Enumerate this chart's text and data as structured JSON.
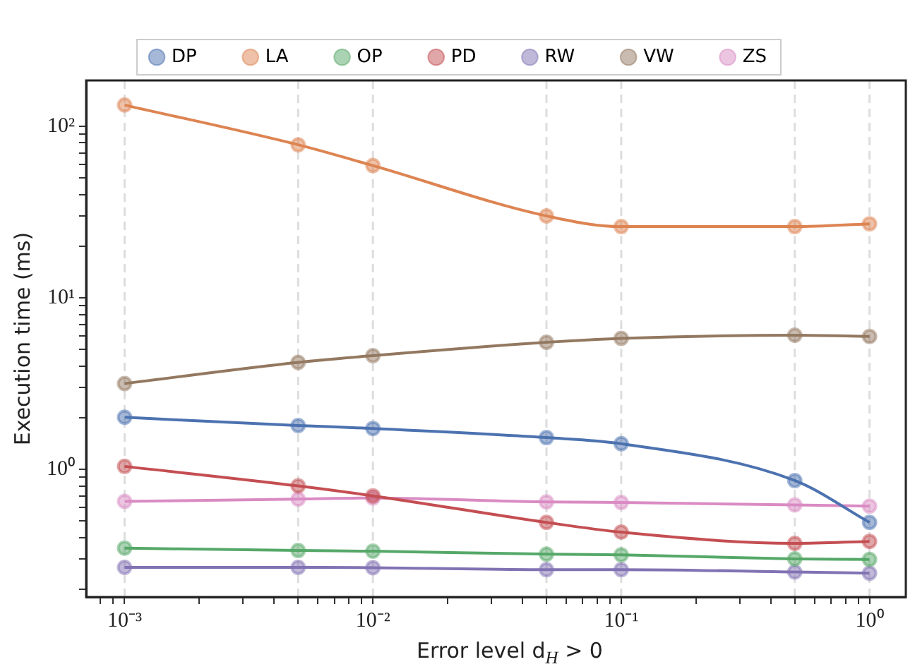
{
  "chart_data": {
    "type": "line",
    "xlabel": "Error level d$_{H}$ > 0",
    "ylabel": "Execution time (ms)",
    "x": [
      0.001,
      0.005,
      0.01,
      0.05,
      0.1,
      0.5,
      1
    ],
    "series": [
      {
        "name": "DP",
        "color": "#4c72b0",
        "values": [
          2.01,
          1.8,
          1.73,
          1.53,
          1.41,
          0.86,
          0.49
        ]
      },
      {
        "name": "LA",
        "color": "#dd8452",
        "values": [
          133,
          78,
          59,
          30,
          26,
          26,
          27
        ]
      },
      {
        "name": "OP",
        "color": "#55a868",
        "values": [
          0.347,
          0.336,
          0.333,
          0.32,
          0.317,
          0.3,
          0.298
        ]
      },
      {
        "name": "PD",
        "color": "#c44e52",
        "values": [
          1.04,
          0.8,
          0.7,
          0.49,
          0.43,
          0.37,
          0.38
        ]
      },
      {
        "name": "RW",
        "color": "#8172b3",
        "values": [
          0.268,
          0.268,
          0.267,
          0.26,
          0.26,
          0.252,
          0.248
        ]
      },
      {
        "name": "VW",
        "color": "#937860",
        "values": [
          3.16,
          4.2,
          4.6,
          5.5,
          5.8,
          6.05,
          5.95
        ]
      },
      {
        "name": "ZS",
        "color": "#da8bc3",
        "values": [
          0.65,
          0.67,
          0.68,
          0.645,
          0.64,
          0.62,
          0.61
        ]
      }
    ],
    "log": "xy",
    "xlim": [
      0.0007,
      1.4
    ],
    "ylim": [
      0.18,
      185
    ],
    "xticks": [
      {
        "value": 0.0008,
        "label": null
      },
      {
        "value": 0.0009,
        "label": null
      },
      {
        "value": 0.001,
        "label": "10⁻³"
      },
      {
        "value": 0.002,
        "label": null
      },
      {
        "value": 0.003,
        "label": null
      },
      {
        "value": 0.004,
        "label": null
      },
      {
        "value": 0.005,
        "label": null
      },
      {
        "value": 0.006,
        "label": null
      },
      {
        "value": 0.007,
        "label": null
      },
      {
        "value": 0.008,
        "label": null
      },
      {
        "value": 0.009,
        "label": null
      },
      {
        "value": 0.01,
        "label": "10⁻²"
      },
      {
        "value": 0.02,
        "label": null
      },
      {
        "value": 0.03,
        "label": null
      },
      {
        "value": 0.04,
        "label": null
      },
      {
        "value": 0.05,
        "label": null
      },
      {
        "value": 0.06,
        "label": null
      },
      {
        "value": 0.07,
        "label": null
      },
      {
        "value": 0.08,
        "label": null
      },
      {
        "value": 0.09,
        "label": null
      },
      {
        "value": 0.1,
        "label": "10⁻¹"
      },
      {
        "value": 0.2,
        "label": null
      },
      {
        "value": 0.3,
        "label": null
      },
      {
        "value": 0.4,
        "label": null
      },
      {
        "value": 0.5,
        "label": null
      },
      {
        "value": 0.6,
        "label": null
      },
      {
        "value": 0.7,
        "label": null
      },
      {
        "value": 0.8,
        "label": null
      },
      {
        "value": 0.9,
        "label": null
      },
      {
        "value": 1,
        "label": "10⁰"
      }
    ],
    "yticks": [
      {
        "value": 0.2,
        "label": null
      },
      {
        "value": 0.3,
        "label": null
      },
      {
        "value": 0.4,
        "label": null
      },
      {
        "value": 0.5,
        "label": null
      },
      {
        "value": 0.6,
        "label": null
      },
      {
        "value": 0.7,
        "label": null
      },
      {
        "value": 0.8,
        "label": null
      },
      {
        "value": 0.9,
        "label": null
      },
      {
        "value": 1,
        "label": "10⁰"
      },
      {
        "value": 2,
        "label": null
      },
      {
        "value": 3,
        "label": null
      },
      {
        "value": 4,
        "label": null
      },
      {
        "value": 5,
        "label": null
      },
      {
        "value": 6,
        "label": null
      },
      {
        "value": 7,
        "label": null
      },
      {
        "value": 8,
        "label": null
      },
      {
        "value": 9,
        "label": null
      },
      {
        "value": 10,
        "label": "10¹"
      },
      {
        "value": 20,
        "label": null
      },
      {
        "value": 30,
        "label": null
      },
      {
        "value": 40,
        "label": null
      },
      {
        "value": 50,
        "label": null
      },
      {
        "value": 60,
        "label": null
      },
      {
        "value": 70,
        "label": null
      },
      {
        "value": 80,
        "label": null
      },
      {
        "value": 90,
        "label": null
      },
      {
        "value": 100,
        "label": "10²"
      }
    ],
    "ref_lines": [
      {
        "axis": "x",
        "value": 0.001,
        "color": "#dddddd",
        "line_style": "dashed"
      },
      {
        "axis": "x",
        "value": 0.005,
        "color": "#dddddd",
        "line_style": "dashed"
      },
      {
        "axis": "x",
        "value": 0.01,
        "color": "#dddddd",
        "line_style": "dashed"
      },
      {
        "axis": "x",
        "value": 0.05,
        "color": "#dddddd",
        "line_style": "dashed"
      },
      {
        "axis": "x",
        "value": 0.1,
        "color": "#dddddd",
        "line_style": "dashed"
      },
      {
        "axis": "x",
        "value": 0.5,
        "color": "#dddddd",
        "line_style": "dashed"
      },
      {
        "axis": "x",
        "value": 1,
        "color": "#dddddd",
        "line_style": "dashed"
      }
    ],
    "grid": false,
    "legend": "top",
    "marker": "circle",
    "line_style": "solid"
  }
}
